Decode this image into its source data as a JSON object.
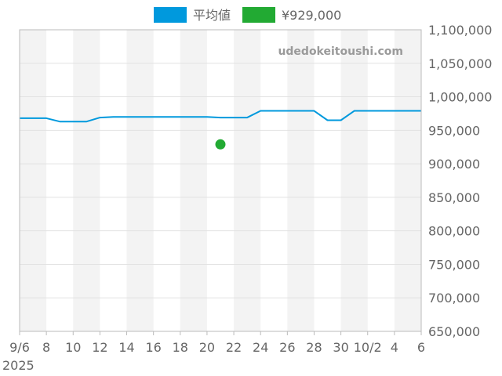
{
  "legend": {
    "average_label": "平均値",
    "point_label": "¥929,000"
  },
  "watermark": "udedokeitoushi.com",
  "colors": {
    "average_line": "#0099dd",
    "point": "#22aa33",
    "stripe": "#f3f3f3",
    "grid": "#e2e2e2",
    "axis": "#bbbbbb"
  },
  "chart_data": {
    "type": "line",
    "x_domain": [
      "2025-09-06",
      "2025-10-06"
    ],
    "ylim": [
      650000,
      1100000
    ],
    "y_ticks": [
      650000,
      700000,
      750000,
      800000,
      850000,
      900000,
      950000,
      1000000,
      1050000,
      1100000
    ],
    "y_tick_labels": [
      "650,000",
      "700,000",
      "750,000",
      "800,000",
      "850,000",
      "900,000",
      "950,000",
      "1,000,000",
      "1,050,000",
      "1,100,000"
    ],
    "x_ticks": [
      {
        "date": "2025-09-06",
        "label": "9/6"
      },
      {
        "date": "2025-09-08",
        "label": "8"
      },
      {
        "date": "2025-09-10",
        "label": "10"
      },
      {
        "date": "2025-09-12",
        "label": "12"
      },
      {
        "date": "2025-09-14",
        "label": "14"
      },
      {
        "date": "2025-09-16",
        "label": "16"
      },
      {
        "date": "2025-09-18",
        "label": "18"
      },
      {
        "date": "2025-09-20",
        "label": "20"
      },
      {
        "date": "2025-09-22",
        "label": "22"
      },
      {
        "date": "2025-09-24",
        "label": "24"
      },
      {
        "date": "2025-09-26",
        "label": "26"
      },
      {
        "date": "2025-09-28",
        "label": "28"
      },
      {
        "date": "2025-09-30",
        "label": "30"
      },
      {
        "date": "2025-10-02",
        "label": "10/2"
      },
      {
        "date": "2025-10-04",
        "label": "4"
      },
      {
        "date": "2025-10-06",
        "label": "6"
      }
    ],
    "year_label": "2025",
    "grid": true,
    "legend_position": "top",
    "series": [
      {
        "name": "平均値",
        "type": "line",
        "points": [
          {
            "x": "2025-09-06",
            "y": 968000
          },
          {
            "x": "2025-09-07",
            "y": 968000
          },
          {
            "x": "2025-09-08",
            "y": 968000
          },
          {
            "x": "2025-09-09",
            "y": 963000
          },
          {
            "x": "2025-09-10",
            "y": 963000
          },
          {
            "x": "2025-09-11",
            "y": 963000
          },
          {
            "x": "2025-09-12",
            "y": 969000
          },
          {
            "x": "2025-09-13",
            "y": 970000
          },
          {
            "x": "2025-09-14",
            "y": 970000
          },
          {
            "x": "2025-09-15",
            "y": 970000
          },
          {
            "x": "2025-09-16",
            "y": 970000
          },
          {
            "x": "2025-09-17",
            "y": 970000
          },
          {
            "x": "2025-09-18",
            "y": 970000
          },
          {
            "x": "2025-09-19",
            "y": 970000
          },
          {
            "x": "2025-09-20",
            "y": 970000
          },
          {
            "x": "2025-09-21",
            "y": 969000
          },
          {
            "x": "2025-09-22",
            "y": 969000
          },
          {
            "x": "2025-09-23",
            "y": 969000
          },
          {
            "x": "2025-09-24",
            "y": 979000
          },
          {
            "x": "2025-09-25",
            "y": 979000
          },
          {
            "x": "2025-09-26",
            "y": 979000
          },
          {
            "x": "2025-09-27",
            "y": 979000
          },
          {
            "x": "2025-09-28",
            "y": 979000
          },
          {
            "x": "2025-09-29",
            "y": 965000
          },
          {
            "x": "2025-09-30",
            "y": 965000
          },
          {
            "x": "2025-10-01",
            "y": 979000
          },
          {
            "x": "2025-10-02",
            "y": 979000
          },
          {
            "x": "2025-10-03",
            "y": 979000
          },
          {
            "x": "2025-10-04",
            "y": 979000
          },
          {
            "x": "2025-10-05",
            "y": 979000
          },
          {
            "x": "2025-10-06",
            "y": 979000
          }
        ]
      },
      {
        "name": "¥929,000",
        "type": "scatter",
        "points": [
          {
            "x": "2025-09-21",
            "y": 929000
          }
        ]
      }
    ]
  }
}
